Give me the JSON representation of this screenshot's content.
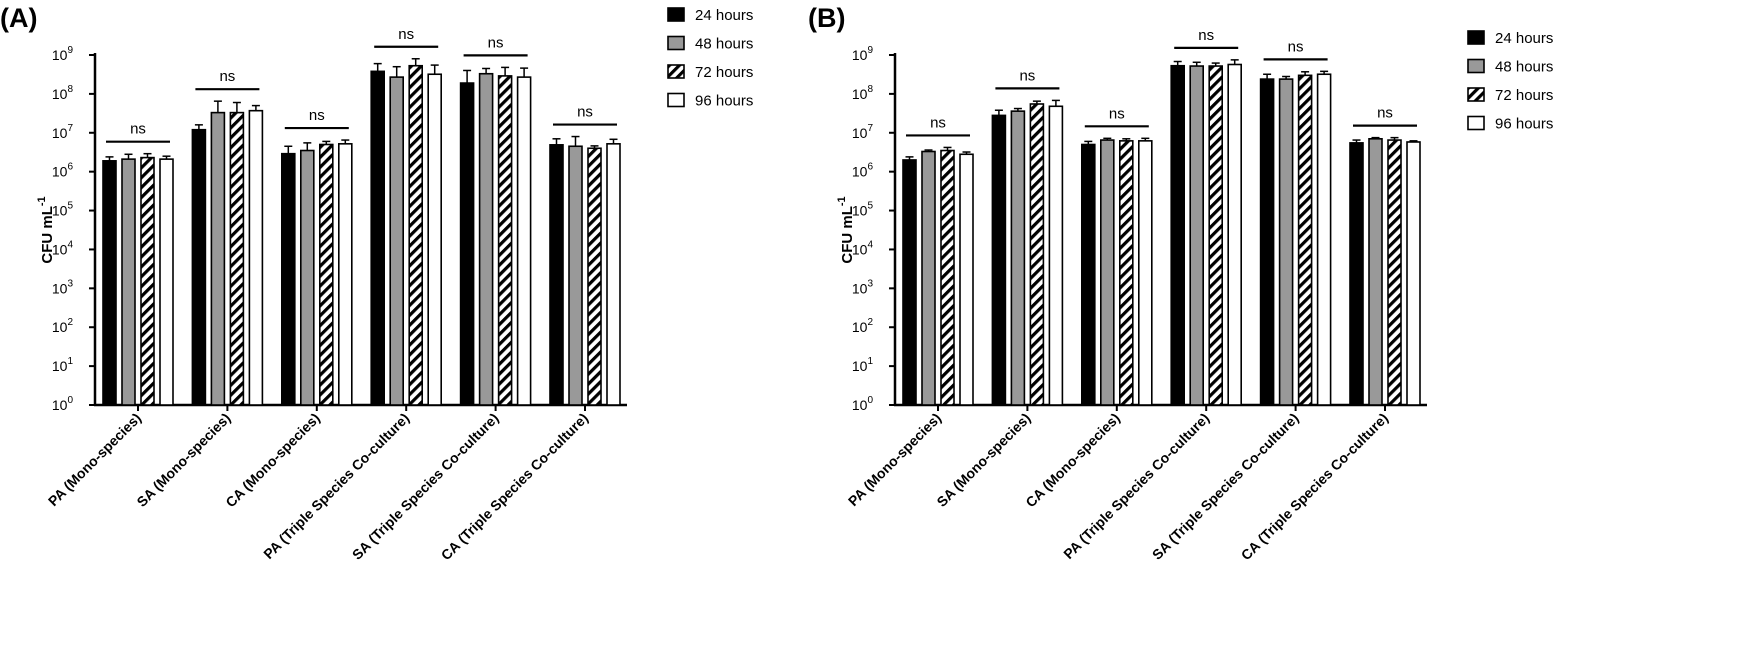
{
  "chart_data": [
    {
      "type": "bar",
      "panel_label": "(A)",
      "ylabel": "CFU mL",
      "ylabel_sup": "-1",
      "yscale": "log",
      "ylim": [
        1,
        1000000000
      ],
      "ytick_base": "10",
      "ytick_exponents": [
        "0",
        "1",
        "2",
        "3",
        "4",
        "5",
        "6",
        "7",
        "8",
        "9"
      ],
      "categories": [
        "PA (Mono-species)",
        "SA (Mono-species)",
        "CA (Mono-species)",
        "PA (Triple Species Co-culture)",
        "SA (Triple Species Co-culture)",
        "CA (Triple Species Co-culture)"
      ],
      "series": [
        {
          "name": "24 hours",
          "values": [
            1900000,
            12000000,
            2900000,
            380000000,
            190000000,
            4900000
          ],
          "errors": [
            2400000,
            16000000,
            4500000,
            600000000,
            400000000,
            7000000
          ]
        },
        {
          "name": "48 hours",
          "values": [
            2100000,
            33000000,
            3500000,
            270000000,
            330000000,
            4500000
          ],
          "errors": [
            2800000,
            65000000,
            5500000,
            500000000,
            450000000,
            8000000
          ]
        },
        {
          "name": "72 hours",
          "values": [
            2300000,
            33000000,
            5000000,
            530000000,
            290000000,
            4000000
          ],
          "errors": [
            2900000,
            60000000,
            6000000,
            800000000,
            480000000,
            4600000
          ]
        },
        {
          "name": "96 hours",
          "values": [
            2100000,
            37000000,
            5200000,
            320000000,
            270000000,
            5200000
          ],
          "errors": [
            2500000,
            50000000,
            6500000,
            550000000,
            460000000,
            6800000
          ]
        }
      ],
      "annotations": [
        "ns",
        "ns",
        "ns",
        "ns",
        "ns",
        "ns"
      ],
      "legend": "top-right"
    },
    {
      "type": "bar",
      "panel_label": "(B)",
      "ylabel": "CFU mL",
      "ylabel_sup": "-1",
      "yscale": "log",
      "ylim": [
        1,
        1000000000
      ],
      "ytick_base": "10",
      "ytick_exponents": [
        "0",
        "1",
        "2",
        "3",
        "4",
        "5",
        "6",
        "7",
        "8",
        "9"
      ],
      "categories": [
        "PA (Mono-species)",
        "SA (Mono-species)",
        "CA (Mono-species)",
        "PA (Triple Species Co-culture)",
        "SA (Triple Species Co-culture)",
        "CA (Triple Species Co-culture)"
      ],
      "series": [
        {
          "name": "24 hours",
          "values": [
            2000000,
            28000000,
            5000000,
            530000000,
            240000000,
            5500000
          ],
          "errors": [
            2400000,
            38000000,
            6000000,
            680000000,
            320000000,
            6500000
          ]
        },
        {
          "name": "48 hours",
          "values": [
            3300000,
            36000000,
            6500000,
            520000000,
            240000000,
            7000000
          ],
          "errors": [
            3600000,
            42000000,
            7200000,
            650000000,
            280000000,
            7500000
          ]
        },
        {
          "name": "72 hours",
          "values": [
            3500000,
            55000000,
            6200000,
            520000000,
            300000000,
            6500000
          ],
          "errors": [
            4200000,
            65000000,
            7000000,
            620000000,
            370000000,
            7500000
          ]
        },
        {
          "name": "96 hours",
          "values": [
            2800000,
            48000000,
            6200000,
            570000000,
            320000000,
            5800000
          ],
          "errors": [
            3200000,
            68000000,
            7200000,
            750000000,
            380000000,
            6200000
          ]
        }
      ],
      "annotations": [
        "ns",
        "ns",
        "ns",
        "ns",
        "ns",
        "ns"
      ],
      "legend": "top-right"
    }
  ],
  "colors": {
    "axis": "#000000",
    "series_fills": [
      "#000000",
      "#999999",
      "hatch",
      "#ffffff"
    ]
  }
}
